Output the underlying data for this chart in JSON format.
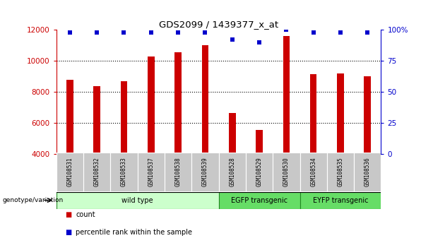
{
  "title": "GDS2099 / 1439377_x_at",
  "samples": [
    "GSM108531",
    "GSM108532",
    "GSM108533",
    "GSM108537",
    "GSM108538",
    "GSM108539",
    "GSM108528",
    "GSM108529",
    "GSM108530",
    "GSM108534",
    "GSM108535",
    "GSM108536"
  ],
  "counts": [
    8800,
    8350,
    8700,
    10300,
    10550,
    11000,
    6650,
    5550,
    11600,
    9150,
    9200,
    9000
  ],
  "percentiles": [
    98,
    98,
    98,
    98,
    98,
    98,
    92,
    90,
    100,
    98,
    98,
    98
  ],
  "bar_color": "#cc0000",
  "dot_color": "#0000cc",
  "ylim_left": [
    4000,
    12000
  ],
  "ylim_right": [
    0,
    100
  ],
  "yticks_left": [
    4000,
    6000,
    8000,
    10000,
    12000
  ],
  "yticks_right": [
    0,
    25,
    50,
    75,
    100
  ],
  "yticklabels_right": [
    "0",
    "25",
    "50",
    "75",
    "100%"
  ],
  "grid_values": [
    6000,
    8000,
    10000
  ],
  "groups": [
    {
      "label": "wild type",
      "start": 0,
      "end": 6,
      "color": "#ccffcc"
    },
    {
      "label": "EGFP transgenic",
      "start": 6,
      "end": 9,
      "color": "#66dd66"
    },
    {
      "label": "EYFP transgenic",
      "start": 9,
      "end": 12,
      "color": "#66dd66"
    }
  ],
  "genotype_label": "genotype/variation",
  "legend_count_label": "count",
  "legend_percentile_label": "percentile rank within the sample",
  "background_color": "#ffffff"
}
